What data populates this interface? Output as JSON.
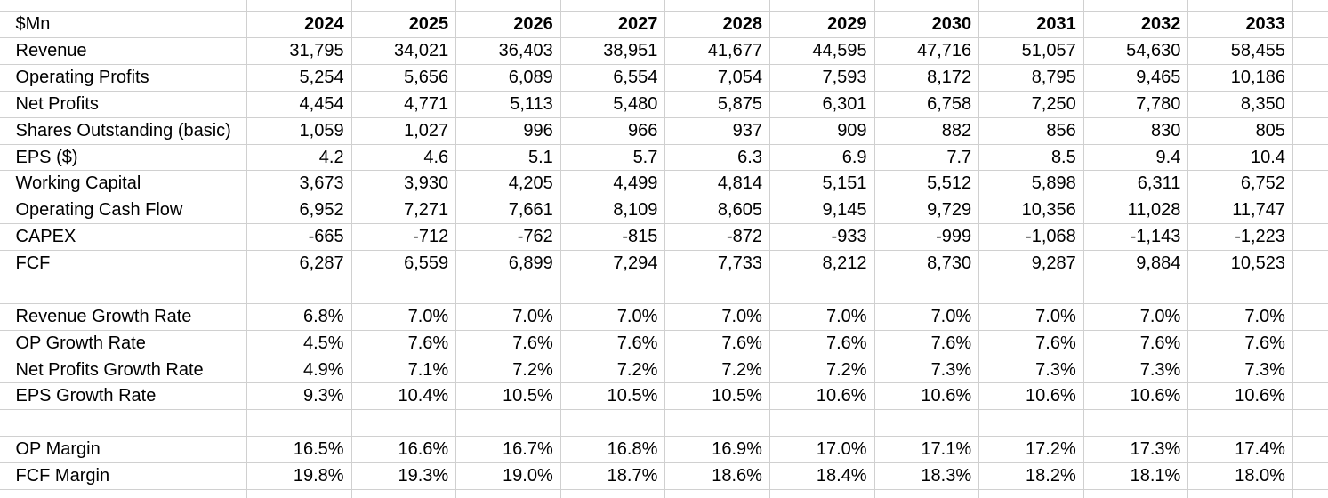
{
  "sheet": {
    "corner_label": "$Mn",
    "years": [
      "2024",
      "2025",
      "2026",
      "2027",
      "2028",
      "2029",
      "2030",
      "2031",
      "2032",
      "2033"
    ],
    "rows": [
      {
        "type": "data",
        "label": "Revenue",
        "values": [
          "31,795",
          "34,021",
          "36,403",
          "38,951",
          "41,677",
          "44,595",
          "47,716",
          "51,057",
          "54,630",
          "58,455"
        ]
      },
      {
        "type": "data",
        "label": "Operating Profits",
        "values": [
          "5,254",
          "5,656",
          "6,089",
          "6,554",
          "7,054",
          "7,593",
          "8,172",
          "8,795",
          "9,465",
          "10,186"
        ]
      },
      {
        "type": "data",
        "label": "Net Profits",
        "values": [
          "4,454",
          "4,771",
          "5,113",
          "5,480",
          "5,875",
          "6,301",
          "6,758",
          "7,250",
          "7,780",
          "8,350"
        ]
      },
      {
        "type": "data",
        "label": "Shares Outstanding (basic)",
        "values": [
          "1,059",
          "1,027",
          "996",
          "966",
          "937",
          "909",
          "882",
          "856",
          "830",
          "805"
        ]
      },
      {
        "type": "data",
        "label": "EPS ($)",
        "values": [
          "4.2",
          "4.6",
          "5.1",
          "5.7",
          "6.3",
          "6.9",
          "7.7",
          "8.5",
          "9.4",
          "10.4"
        ]
      },
      {
        "type": "data",
        "label": "Working Capital",
        "values": [
          "3,673",
          "3,930",
          "4,205",
          "4,499",
          "4,814",
          "5,151",
          "5,512",
          "5,898",
          "6,311",
          "6,752"
        ]
      },
      {
        "type": "data",
        "label": "Operating Cash Flow",
        "values": [
          "6,952",
          "7,271",
          "7,661",
          "8,109",
          "8,605",
          "9,145",
          "9,729",
          "10,356",
          "11,028",
          "11,747"
        ]
      },
      {
        "type": "data",
        "label": "CAPEX",
        "values": [
          "-665",
          "-712",
          "-762",
          "-815",
          "-872",
          "-933",
          "-999",
          "-1,068",
          "-1,143",
          "-1,223"
        ]
      },
      {
        "type": "data",
        "label": "FCF",
        "values": [
          "6,287",
          "6,559",
          "6,899",
          "7,294",
          "7,733",
          "8,212",
          "8,730",
          "9,287",
          "9,884",
          "10,523"
        ]
      },
      {
        "type": "spacer"
      },
      {
        "type": "data",
        "label": "Revenue Growth Rate",
        "values": [
          "6.8%",
          "7.0%",
          "7.0%",
          "7.0%",
          "7.0%",
          "7.0%",
          "7.0%",
          "7.0%",
          "7.0%",
          "7.0%"
        ]
      },
      {
        "type": "data",
        "label": "OP Growth Rate",
        "values": [
          "4.5%",
          "7.6%",
          "7.6%",
          "7.6%",
          "7.6%",
          "7.6%",
          "7.6%",
          "7.6%",
          "7.6%",
          "7.6%"
        ]
      },
      {
        "type": "data",
        "label": "Net Profits Growth Rate",
        "values": [
          "4.9%",
          "7.1%",
          "7.2%",
          "7.2%",
          "7.2%",
          "7.2%",
          "7.3%",
          "7.3%",
          "7.3%",
          "7.3%"
        ]
      },
      {
        "type": "data",
        "label": "EPS Growth Rate",
        "values": [
          "9.3%",
          "10.4%",
          "10.5%",
          "10.5%",
          "10.5%",
          "10.6%",
          "10.6%",
          "10.6%",
          "10.6%",
          "10.6%"
        ]
      },
      {
        "type": "spacer"
      },
      {
        "type": "data",
        "label": "OP Margin",
        "values": [
          "16.5%",
          "16.6%",
          "16.7%",
          "16.8%",
          "16.9%",
          "17.0%",
          "17.1%",
          "17.2%",
          "17.3%",
          "17.4%"
        ]
      },
      {
        "type": "data",
        "label": "FCF Margin",
        "values": [
          "19.8%",
          "19.3%",
          "19.0%",
          "18.7%",
          "18.6%",
          "18.4%",
          "18.3%",
          "18.2%",
          "18.1%",
          "18.0%"
        ]
      }
    ],
    "colors": {
      "gridline": "#d0d0d0",
      "text": "#000000",
      "background": "#ffffff"
    }
  }
}
